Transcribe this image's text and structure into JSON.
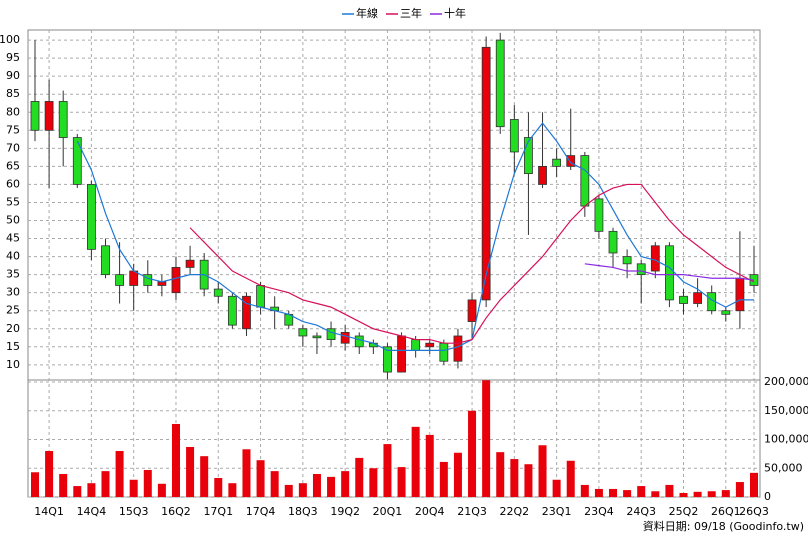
{
  "chart_data": {
    "type": "candlestick",
    "categories": [
      null,
      "14Q1",
      null,
      null,
      "14Q4",
      null,
      null,
      "15Q3",
      null,
      null,
      "16Q2",
      null,
      null,
      "17Q1",
      null,
      null,
      "17Q4",
      null,
      null,
      "18Q3",
      null,
      null,
      "19Q2",
      null,
      null,
      "20Q1",
      null,
      null,
      "20Q4",
      null,
      null,
      "21Q3",
      null,
      null,
      "22Q2",
      null,
      null,
      "23Q1",
      null,
      null,
      "23Q4",
      null,
      null,
      "24Q3",
      null,
      null,
      "25Q2",
      null,
      null,
      "26Q1",
      null,
      "26Q3"
    ],
    "open": [
      83,
      75,
      83,
      73,
      60,
      43,
      35,
      32,
      35,
      32,
      30,
      37,
      39,
      31,
      29,
      20,
      32,
      26,
      24,
      20,
      18,
      20,
      16,
      18,
      16,
      15,
      8,
      17,
      15,
      16,
      11,
      22,
      28,
      100,
      78,
      73,
      60,
      67,
      65,
      68,
      56,
      47,
      40,
      38,
      36,
      43,
      29,
      27,
      30,
      25,
      25,
      35
    ],
    "high": [
      100,
      89,
      86,
      74,
      61,
      45,
      44,
      38,
      39,
      35,
      40,
      43,
      41,
      33,
      30,
      30,
      33,
      29,
      25,
      21,
      19,
      22,
      21,
      19,
      17,
      16,
      19,
      18,
      17,
      17,
      20,
      30,
      101,
      102,
      82,
      80,
      80,
      70,
      81,
      69,
      57,
      48,
      42,
      39,
      44,
      44,
      31,
      34,
      32,
      26,
      47,
      43
    ],
    "low": [
      72,
      59,
      65,
      59,
      39,
      34,
      27,
      25,
      30,
      29,
      28,
      35,
      29,
      27,
      20,
      18,
      24,
      20,
      20,
      15,
      13,
      15,
      14,
      13,
      13,
      6,
      8,
      12,
      13,
      10,
      9,
      17,
      26,
      74,
      63,
      46,
      59,
      62,
      64,
      51,
      45,
      37,
      34,
      27,
      34,
      26,
      24,
      26,
      24,
      22,
      20,
      30
    ],
    "close": [
      75,
      83,
      73,
      60,
      42,
      35,
      32,
      36,
      32,
      33,
      37,
      39,
      31,
      29,
      21,
      29,
      26,
      25,
      21,
      18,
      17.5,
      17,
      19,
      15,
      15,
      8,
      18,
      14,
      16,
      11,
      18,
      28,
      98,
      76,
      69,
      63,
      65,
      65,
      68,
      54,
      47,
      41,
      38,
      35,
      43,
      28,
      27,
      30,
      25,
      24,
      34,
      32
    ],
    "up_color": "#e8000b",
    "down_color": "#22dd22",
    "series": [
      {
        "name": "年線",
        "color": "#1e78d8",
        "values": [
          null,
          null,
          null,
          72,
          64,
          52,
          42,
          36,
          34,
          33,
          34,
          35,
          35,
          33,
          30,
          27,
          26,
          25,
          24,
          22,
          21,
          19,
          18,
          17,
          16,
          14,
          14,
          14,
          14,
          14,
          15,
          17,
          35,
          50,
          63,
          72,
          77,
          72,
          66,
          64,
          60,
          53,
          46,
          40,
          39,
          37,
          33,
          31,
          28,
          26,
          28,
          28
        ]
      },
      {
        "name": "三年",
        "color": "#d8105a",
        "values": [
          null,
          null,
          null,
          null,
          null,
          null,
          null,
          null,
          null,
          null,
          null,
          48,
          44,
          40,
          36,
          34,
          32,
          31,
          30,
          28,
          27,
          26,
          24,
          22,
          20,
          19,
          18,
          17,
          17,
          16,
          16,
          17,
          23,
          28,
          32,
          36,
          40,
          45,
          50,
          54,
          57,
          59,
          60,
          60,
          55,
          50,
          46,
          43,
          40,
          37,
          35,
          33
        ]
      },
      {
        "name": "十年",
        "color": "#8a2be2",
        "values": [
          null,
          null,
          null,
          null,
          null,
          null,
          null,
          null,
          null,
          null,
          null,
          null,
          null,
          null,
          null,
          null,
          null,
          null,
          null,
          null,
          null,
          null,
          null,
          null,
          null,
          null,
          null,
          null,
          null,
          null,
          null,
          null,
          null,
          null,
          null,
          null,
          null,
          null,
          null,
          38,
          37.5,
          37,
          36,
          36,
          35,
          35,
          35,
          34.5,
          34,
          34,
          34,
          33.5
        ]
      }
    ],
    "ylim": [
      5.8,
      102.8
    ],
    "yticks": [
      10,
      15,
      20,
      25,
      30,
      35,
      40,
      45,
      50,
      55,
      60,
      65,
      70,
      75,
      80,
      85,
      90,
      95,
      100
    ],
    "grid": true,
    "volume": {
      "color": "#e8000b",
      "values": [
        43000,
        80000,
        40000,
        19000,
        24000,
        45000,
        80000,
        30000,
        47000,
        23000,
        127000,
        87000,
        71000,
        33000,
        24000,
        83000,
        64000,
        45000,
        21000,
        24000,
        40000,
        35000,
        45000,
        68000,
        50000,
        92000,
        52000,
        122000,
        108000,
        61000,
        77000,
        150000,
        203000,
        78000,
        66000,
        57000,
        90000,
        30000,
        63000,
        21000,
        14000,
        14000,
        12000,
        19000,
        10000,
        21000,
        7000,
        9000,
        10000,
        12000,
        26000,
        42000
      ],
      "ylim": [
        0,
        203500
      ],
      "yticks": [
        0,
        {
          "value": 50000,
          "label": "50,000"
        },
        {
          "value": 100000,
          "label": "100,000"
        },
        {
          "value": 150000,
          "label": "150,000"
        },
        {
          "value": 200000,
          "label": "200,000"
        }
      ]
    },
    "source": "資料日期: 09/18  (Goodinfo.tw)"
  }
}
